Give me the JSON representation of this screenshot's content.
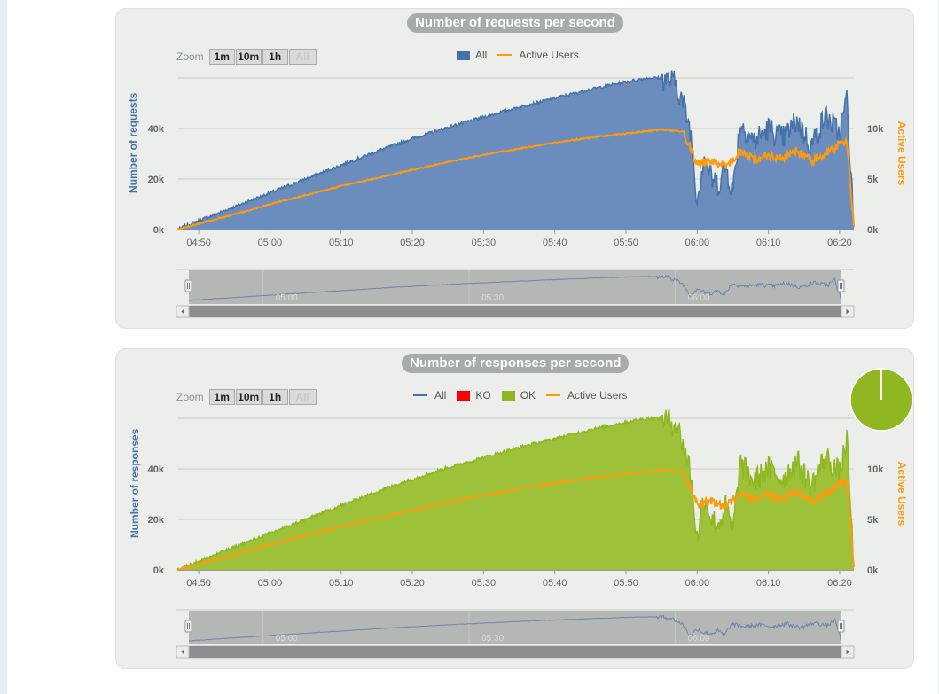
{
  "zoom": {
    "label": "Zoom",
    "buttons": [
      "1m",
      "10m",
      "1h",
      "All"
    ]
  },
  "colors": {
    "all": "#4572a7",
    "ko": "#ff0000",
    "ok": "#8fb722",
    "active_users": "#ff9a0e",
    "axis_title": "#4572a7"
  },
  "x_tick_labels": [
    "04:50",
    "05:00",
    "05:10",
    "05:20",
    "05:30",
    "05:40",
    "05:50",
    "06:00",
    "06:10",
    "06:20"
  ],
  "navigator_labels": [
    "05:00",
    "05:30",
    "06:00"
  ],
  "charts": [
    {
      "title": "Number of requests per second",
      "ylabel": "Number of requests",
      "y2label": "Active Users",
      "y_ticks": [
        "0k",
        "20k",
        "40k"
      ],
      "y2_ticks": [
        "0k",
        "5k",
        "10k"
      ],
      "legend": [
        {
          "name": "All",
          "symbol": "box",
          "color": "#4572a7"
        },
        {
          "name": "Active Users",
          "symbol": "line",
          "color": "#ff9a0e"
        }
      ]
    },
    {
      "title": "Number of responses per second",
      "ylabel": "Number of responses",
      "y2label": "Active Users",
      "y_ticks": [
        "0k",
        "20k",
        "40k"
      ],
      "y2_ticks": [
        "0k",
        "5k",
        "10k"
      ],
      "legend": [
        {
          "name": "All",
          "symbol": "line",
          "color": "#4572a7"
        },
        {
          "name": "KO",
          "symbol": "box",
          "color": "#ff0000"
        },
        {
          "name": "OK",
          "symbol": "box",
          "color": "#8fb722"
        },
        {
          "name": "Active Users",
          "symbol": "line",
          "color": "#ff9a0e"
        }
      ]
    }
  ],
  "chart_data": [
    {
      "type": "area",
      "title": "Number of requests per second",
      "xlabel": "",
      "ylabel": "Number of requests",
      "y2label": "Active Users",
      "x_range": [
        "04:47",
        "06:22"
      ],
      "ylim": [
        0,
        60000
      ],
      "y2lim": [
        0,
        15000
      ],
      "grid": true,
      "legend_position": "top-center",
      "series": [
        {
          "name": "All",
          "axis": "left",
          "x": [
            "04:47",
            "04:50",
            "04:55",
            "05:00",
            "05:05",
            "05:10",
            "05:15",
            "05:20",
            "05:25",
            "05:30",
            "05:35",
            "05:40",
            "05:45",
            "05:50",
            "05:53",
            "05:55",
            "05:57",
            "05:58",
            "05:59",
            "06:00",
            "06:01",
            "06:02",
            "06:03",
            "06:04",
            "06:05",
            "06:06",
            "06:08",
            "06:10",
            "06:12",
            "06:14",
            "06:16",
            "06:18",
            "06:20",
            "06:21",
            "06:22"
          ],
          "values": [
            0,
            3500,
            9000,
            14500,
            20000,
            25500,
            31000,
            36000,
            40500,
            44500,
            48500,
            52000,
            55500,
            58500,
            60000,
            60000,
            58000,
            50000,
            40000,
            12000,
            30000,
            20000,
            18000,
            25000,
            15000,
            42000,
            35000,
            40000,
            36000,
            43000,
            33000,
            45000,
            38000,
            52000,
            1000
          ]
        },
        {
          "name": "Active Users",
          "axis": "right",
          "x": [
            "04:47",
            "04:50",
            "04:55",
            "05:00",
            "05:05",
            "05:10",
            "05:15",
            "05:20",
            "05:25",
            "05:30",
            "05:35",
            "05:40",
            "05:45",
            "05:50",
            "05:55",
            "05:58",
            "06:00",
            "06:02",
            "06:04",
            "06:06",
            "06:08",
            "06:10",
            "06:12",
            "06:14",
            "06:16",
            "06:18",
            "06:20",
            "06:21",
            "06:22"
          ],
          "values": [
            0,
            600,
            1500,
            2500,
            3400,
            4300,
            5100,
            5900,
            6700,
            7400,
            8000,
            8600,
            9100,
            9500,
            9900,
            9700,
            6500,
            6800,
            6200,
            7600,
            6900,
            7400,
            7000,
            7800,
            6800,
            7500,
            8500,
            8700,
            300
          ]
        }
      ]
    },
    {
      "type": "area",
      "title": "Number of responses per second",
      "xlabel": "",
      "ylabel": "Number of responses",
      "y2label": "Active Users",
      "x_range": [
        "04:47",
        "06:22"
      ],
      "ylim": [
        0,
        60000
      ],
      "y2lim": [
        0,
        15000
      ],
      "grid": true,
      "legend_position": "top-center",
      "series": [
        {
          "name": "All",
          "axis": "left",
          "x": [],
          "values": []
        },
        {
          "name": "KO",
          "axis": "left",
          "x": [],
          "values": []
        },
        {
          "name": "OK",
          "axis": "left",
          "x": [
            "04:47",
            "04:50",
            "04:55",
            "05:00",
            "05:05",
            "05:10",
            "05:15",
            "05:20",
            "05:25",
            "05:30",
            "05:35",
            "05:40",
            "05:45",
            "05:50",
            "05:53",
            "05:55",
            "05:57",
            "05:58",
            "05:59",
            "06:00",
            "06:01",
            "06:02",
            "06:03",
            "06:04",
            "06:05",
            "06:06",
            "06:08",
            "06:10",
            "06:12",
            "06:14",
            "06:16",
            "06:18",
            "06:20",
            "06:21",
            "06:22"
          ],
          "values": [
            0,
            3500,
            9000,
            14500,
            20000,
            25500,
            31000,
            36000,
            40500,
            44500,
            48500,
            52000,
            55500,
            58500,
            60000,
            60000,
            58000,
            50000,
            40000,
            12000,
            30000,
            20000,
            18000,
            25000,
            15000,
            42000,
            35000,
            40000,
            36000,
            43000,
            33000,
            45000,
            38000,
            52000,
            1000
          ]
        },
        {
          "name": "Active Users",
          "axis": "right",
          "x": [
            "04:47",
            "04:50",
            "04:55",
            "05:00",
            "05:05",
            "05:10",
            "05:15",
            "05:20",
            "05:25",
            "05:30",
            "05:35",
            "05:40",
            "05:45",
            "05:50",
            "05:55",
            "05:58",
            "06:00",
            "06:02",
            "06:04",
            "06:06",
            "06:08",
            "06:10",
            "06:12",
            "06:14",
            "06:16",
            "06:18",
            "06:20",
            "06:21",
            "06:22"
          ],
          "values": [
            0,
            600,
            1500,
            2500,
            3400,
            4300,
            5100,
            5900,
            6700,
            7400,
            8000,
            8600,
            9100,
            9500,
            9900,
            9700,
            6500,
            6800,
            6200,
            7600,
            6900,
            7400,
            7000,
            7800,
            6800,
            7500,
            8500,
            8700,
            300
          ]
        }
      ]
    },
    {
      "type": "pie",
      "categories": [
        "OK",
        "KO"
      ],
      "values": [
        99.5,
        0.5
      ]
    }
  ]
}
